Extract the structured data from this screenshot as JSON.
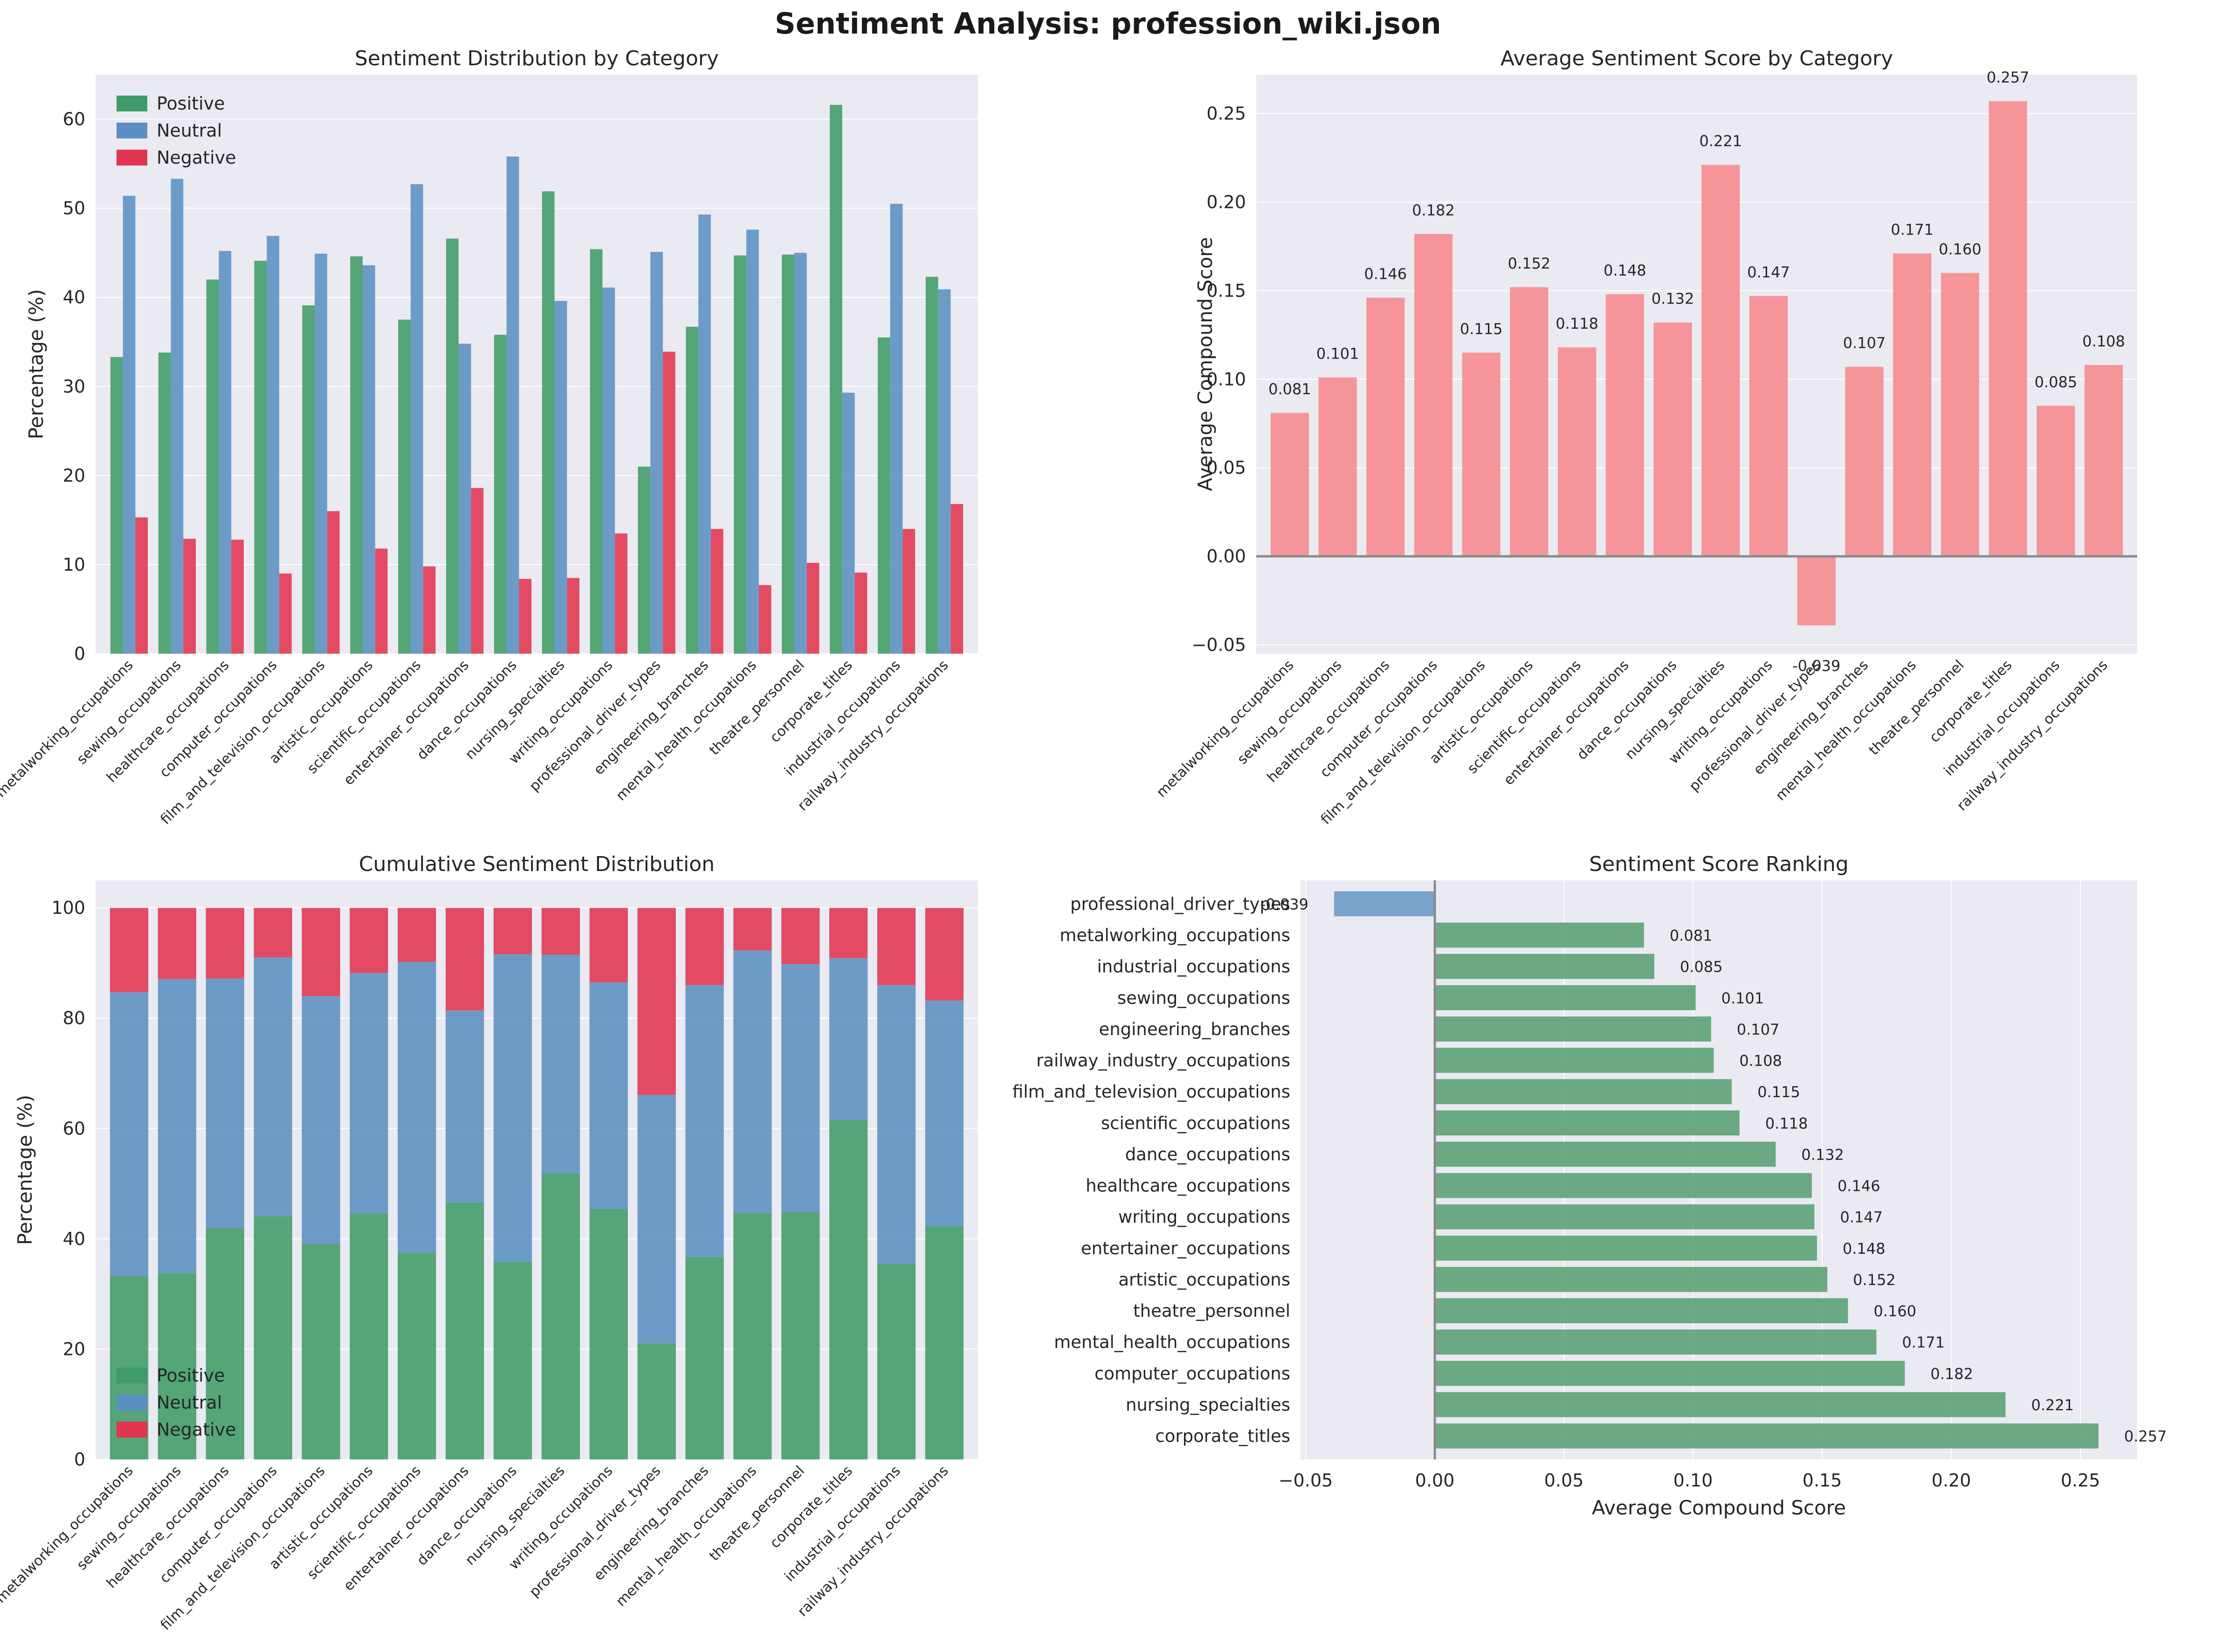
{
  "suptitle": "Sentiment Analysis: profession_wiki.json",
  "colors": {
    "positive": "#3f9b67",
    "neutral": "#5b8fc2",
    "negative": "#e0344f",
    "avg_bar": "#f7898c",
    "rank_pos": "#5fa37a",
    "rank_neg": "#6f9dc8",
    "plot_bg": "#eaeaf2"
  },
  "chart_data": [
    {
      "id": "grouped",
      "type": "bar",
      "title": "Sentiment Distribution by Category",
      "xlabel": "",
      "ylabel": "Percentage (%)",
      "ylim": [
        0,
        65
      ],
      "yticks": [
        0,
        10,
        20,
        30,
        40,
        50,
        60
      ],
      "legend": "top-left",
      "categories": [
        "metalworking_occupations",
        "sewing_occupations",
        "healthcare_occupations",
        "computer_occupations",
        "film_and_television_occupations",
        "artistic_occupations",
        "scientific_occupations",
        "entertainer_occupations",
        "dance_occupations",
        "nursing_specialties",
        "writing_occupations",
        "professional_driver_types",
        "engineering_branches",
        "mental_health_occupations",
        "theatre_personnel",
        "corporate_titles",
        "industrial_occupations",
        "railway_industry_occupations"
      ],
      "series": [
        {
          "name": "Positive",
          "values": [
            33.3,
            33.8,
            42.0,
            44.1,
            39.1,
            44.6,
            37.5,
            46.6,
            35.8,
            51.9,
            45.4,
            21.0,
            36.7,
            44.7,
            44.8,
            61.6,
            35.5,
            42.3
          ]
        },
        {
          "name": "Neutral",
          "values": [
            51.4,
            53.3,
            45.2,
            46.9,
            44.9,
            43.6,
            52.7,
            34.8,
            55.8,
            39.6,
            41.1,
            45.1,
            49.3,
            47.6,
            45.0,
            29.3,
            50.5,
            40.9
          ]
        },
        {
          "name": "Negative",
          "values": [
            15.3,
            12.9,
            12.8,
            9.0,
            16.0,
            11.8,
            9.8,
            18.6,
            8.4,
            8.5,
            13.5,
            33.9,
            14.0,
            7.7,
            10.2,
            9.1,
            14.0,
            16.8
          ]
        }
      ]
    },
    {
      "id": "average",
      "type": "bar",
      "title": "Average Sentiment Score by Category",
      "xlabel": "",
      "ylabel": "Average Compound Score",
      "ylim": [
        -0.055,
        0.272
      ],
      "yticks": [
        -0.05,
        0.0,
        0.05,
        0.1,
        0.15,
        0.2,
        0.25
      ],
      "ytick_labels": [
        "−0.05",
        "0.00",
        "0.05",
        "0.10",
        "0.15",
        "0.20",
        "0.25"
      ],
      "categories": [
        "metalworking_occupations",
        "sewing_occupations",
        "healthcare_occupations",
        "computer_occupations",
        "film_and_television_occupations",
        "artistic_occupations",
        "scientific_occupations",
        "entertainer_occupations",
        "dance_occupations",
        "nursing_specialties",
        "writing_occupations",
        "professional_driver_types",
        "engineering_branches",
        "mental_health_occupations",
        "theatre_personnel",
        "corporate_titles",
        "industrial_occupations",
        "railway_industry_occupations"
      ],
      "values": [
        0.081,
        0.101,
        0.146,
        0.182,
        0.115,
        0.152,
        0.118,
        0.148,
        0.132,
        0.221,
        0.147,
        -0.039,
        0.107,
        0.171,
        0.16,
        0.257,
        0.085,
        0.108
      ],
      "labels": [
        "0.081",
        "0.101",
        "0.146",
        "0.182",
        "0.115",
        "0.152",
        "0.118",
        "0.148",
        "0.132",
        "0.221",
        "0.147",
        "-0.039",
        "0.107",
        "0.171",
        "0.160",
        "0.257",
        "0.085",
        "0.108"
      ]
    },
    {
      "id": "stacked",
      "type": "bar",
      "title": "Cumulative Sentiment Distribution",
      "xlabel": "",
      "ylabel": "Percentage (%)",
      "ylim": [
        0,
        105
      ],
      "yticks": [
        0,
        20,
        40,
        60,
        80,
        100
      ],
      "legend": "bottom-left",
      "categories": [
        "metalworking_occupations",
        "sewing_occupations",
        "healthcare_occupations",
        "computer_occupations",
        "film_and_television_occupations",
        "artistic_occupations",
        "scientific_occupations",
        "entertainer_occupations",
        "dance_occupations",
        "nursing_specialties",
        "writing_occupations",
        "professional_driver_types",
        "engineering_branches",
        "mental_health_occupations",
        "theatre_personnel",
        "corporate_titles",
        "industrial_occupations",
        "railway_industry_occupations"
      ],
      "series": [
        {
          "name": "Positive",
          "values": [
            33.3,
            33.8,
            42.0,
            44.1,
            39.1,
            44.6,
            37.5,
            46.6,
            35.8,
            51.9,
            45.4,
            21.0,
            36.7,
            44.7,
            44.8,
            61.6,
            35.5,
            42.3
          ]
        },
        {
          "name": "Neutral",
          "values": [
            51.4,
            53.3,
            45.2,
            46.9,
            44.9,
            43.6,
            52.7,
            34.8,
            55.8,
            39.6,
            41.1,
            45.1,
            49.3,
            47.6,
            45.0,
            29.3,
            50.5,
            40.9
          ]
        },
        {
          "name": "Negative",
          "values": [
            15.3,
            12.9,
            12.8,
            9.0,
            16.0,
            11.8,
            9.8,
            18.6,
            8.4,
            8.5,
            13.5,
            33.9,
            14.0,
            7.7,
            10.2,
            9.1,
            14.0,
            16.8
          ]
        }
      ]
    },
    {
      "id": "ranking",
      "type": "bar",
      "orientation": "horizontal",
      "title": "Sentiment Score Ranking",
      "xlabel": "Average Compound Score",
      "ylabel": "",
      "xlim": [
        -0.052,
        0.272
      ],
      "xticks": [
        -0.05,
        0.0,
        0.05,
        0.1,
        0.15,
        0.2,
        0.25
      ],
      "xtick_labels": [
        "−0.05",
        "0.00",
        "0.05",
        "0.10",
        "0.15",
        "0.20",
        "0.25"
      ],
      "categories": [
        "professional_driver_types",
        "metalworking_occupations",
        "industrial_occupations",
        "sewing_occupations",
        "engineering_branches",
        "railway_industry_occupations",
        "film_and_television_occupations",
        "scientific_occupations",
        "dance_occupations",
        "healthcare_occupations",
        "writing_occupations",
        "entertainer_occupations",
        "artistic_occupations",
        "theatre_personnel",
        "mental_health_occupations",
        "computer_occupations",
        "nursing_specialties",
        "corporate_titles"
      ],
      "values": [
        -0.039,
        0.081,
        0.085,
        0.101,
        0.107,
        0.108,
        0.115,
        0.118,
        0.132,
        0.146,
        0.147,
        0.148,
        0.152,
        0.16,
        0.171,
        0.182,
        0.221,
        0.257
      ],
      "labels": [
        "-0.039",
        "0.081",
        "0.085",
        "0.101",
        "0.107",
        "0.108",
        "0.115",
        "0.118",
        "0.132",
        "0.146",
        "0.147",
        "0.148",
        "0.152",
        "0.160",
        "0.171",
        "0.182",
        "0.221",
        "0.257"
      ]
    }
  ]
}
